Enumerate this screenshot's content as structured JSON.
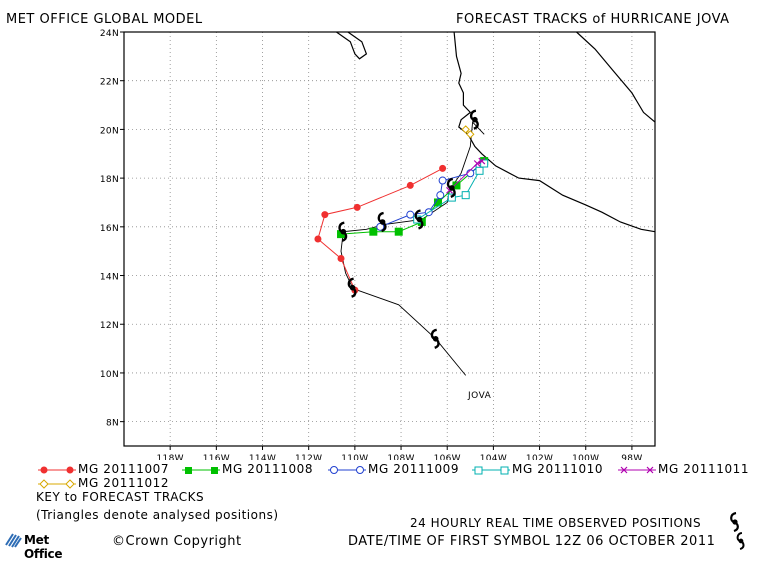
{
  "header": {
    "left_title": "MET OFFICE GLOBAL MODEL",
    "right_title": "FORECAST TRACKS of HURRICANE JOVA"
  },
  "axes": {
    "y_ticks": [
      "24N",
      "22N",
      "20N",
      "18N",
      "16N",
      "14N",
      "12N",
      "10N",
      "8N"
    ],
    "x_ticks": [
      "118W",
      "116W",
      "114W",
      "112W",
      "110W",
      "108W",
      "106W",
      "104W",
      "102W",
      "100W",
      "98W"
    ],
    "lon_range": [
      -120,
      -97
    ],
    "lat_range": [
      7,
      24
    ]
  },
  "storm_label": "JOVA",
  "observed_track": [
    {
      "lon": -104.4,
      "lat": 19.8
    },
    {
      "lon": -104.9,
      "lat": 20.3
    },
    {
      "lon": -105.0,
      "lat": 19.3
    },
    {
      "lon": -105.4,
      "lat": 18.2
    },
    {
      "lon": -105.9,
      "lat": 17.5
    },
    {
      "lon": -106.0,
      "lat": 17.0
    },
    {
      "lon": -107.1,
      "lat": 16.3
    },
    {
      "lon": -108.7,
      "lat": 16.1
    },
    {
      "lon": -109.5,
      "lat": 15.9
    },
    {
      "lon": -110.5,
      "lat": 15.8
    },
    {
      "lon": -110.6,
      "lat": 15.0
    },
    {
      "lon": -110.4,
      "lat": 14.1
    },
    {
      "lon": -110.1,
      "lat": 13.5
    },
    {
      "lon": -109.9,
      "lat": 13.4
    },
    {
      "lon": -108.1,
      "lat": 12.8
    },
    {
      "lon": -106.5,
      "lat": 11.4
    },
    {
      "lon": -105.2,
      "lat": 9.9
    }
  ],
  "observed_symbols": [
    {
      "lon": -104.8,
      "lat": 20.4
    },
    {
      "lon": -105.8,
      "lat": 17.6
    },
    {
      "lon": -107.2,
      "lat": 16.3
    },
    {
      "lon": -108.8,
      "lat": 16.2
    },
    {
      "lon": -110.5,
      "lat": 15.8
    },
    {
      "lon": -110.1,
      "lat": 13.5
    },
    {
      "lon": -106.5,
      "lat": 11.4
    }
  ],
  "forecast_tracks": [
    {
      "name": "MG 20111007",
      "color": "#f03030",
      "marker": "filled-circle",
      "points": [
        {
          "lon": -110.0,
          "lat": 13.4
        },
        {
          "lon": -110.6,
          "lat": 14.7
        },
        {
          "lon": -111.6,
          "lat": 15.5
        },
        {
          "lon": -111.3,
          "lat": 16.5
        },
        {
          "lon": -109.9,
          "lat": 16.8
        },
        {
          "lon": -107.6,
          "lat": 17.7
        },
        {
          "lon": -106.2,
          "lat": 18.4
        }
      ]
    },
    {
      "name": "MG 20111008",
      "color": "#00c000",
      "marker": "filled-square",
      "points": [
        {
          "lon": -110.6,
          "lat": 15.7
        },
        {
          "lon": -109.2,
          "lat": 15.8
        },
        {
          "lon": -108.1,
          "lat": 15.8
        },
        {
          "lon": -107.1,
          "lat": 16.2
        },
        {
          "lon": -106.4,
          "lat": 17.0
        },
        {
          "lon": -105.6,
          "lat": 17.7
        },
        {
          "lon": -104.4,
          "lat": 18.7
        }
      ]
    },
    {
      "name": "MG 20111009",
      "color": "#2040d0",
      "marker": "open-circle",
      "points": [
        {
          "lon": -108.9,
          "lat": 16.0
        },
        {
          "lon": -107.6,
          "lat": 16.5
        },
        {
          "lon": -106.8,
          "lat": 16.6
        },
        {
          "lon": -106.3,
          "lat": 17.3
        },
        {
          "lon": -106.2,
          "lat": 17.9
        },
        {
          "lon": -105.0,
          "lat": 18.2
        },
        {
          "lon": -104.6,
          "lat": 18.5
        }
      ]
    },
    {
      "name": "MG 20111010",
      "color": "#00b0b0",
      "marker": "open-square",
      "points": [
        {
          "lon": -107.3,
          "lat": 16.3
        },
        {
          "lon": -105.8,
          "lat": 17.2
        },
        {
          "lon": -105.2,
          "lat": 17.3
        },
        {
          "lon": -104.6,
          "lat": 18.3
        },
        {
          "lon": -104.4,
          "lat": 18.6
        }
      ]
    },
    {
      "name": "MG 20111011",
      "color": "#b000b0",
      "marker": "cross",
      "points": [
        {
          "lon": -105.9,
          "lat": 17.5
        },
        {
          "lon": -104.7,
          "lat": 18.6
        },
        {
          "lon": -104.5,
          "lat": 18.7
        }
      ]
    },
    {
      "name": "MG 20111012",
      "color": "#d8a800",
      "marker": "diamond",
      "points": [
        {
          "lon": -105.0,
          "lat": 19.8
        },
        {
          "lon": -105.2,
          "lat": 20.0
        }
      ]
    }
  ],
  "coastline": [
    [
      {
        "lon": -110.8,
        "lat": 24.0
      },
      {
        "lon": -110.2,
        "lat": 23.6
      },
      {
        "lon": -110.0,
        "lat": 23.1
      },
      {
        "lon": -109.8,
        "lat": 22.9
      },
      {
        "lon": -109.5,
        "lat": 23.1
      },
      {
        "lon": -109.7,
        "lat": 23.6
      },
      {
        "lon": -110.3,
        "lat": 24.0
      }
    ],
    [
      {
        "lon": -105.7,
        "lat": 24.0
      },
      {
        "lon": -105.6,
        "lat": 23.0
      },
      {
        "lon": -105.4,
        "lat": 22.3
      },
      {
        "lon": -105.5,
        "lat": 21.9
      },
      {
        "lon": -105.3,
        "lat": 21.5
      },
      {
        "lon": -105.3,
        "lat": 21.0
      },
      {
        "lon": -105.0,
        "lat": 20.7
      },
      {
        "lon": -105.4,
        "lat": 20.4
      },
      {
        "lon": -105.5,
        "lat": 20.1
      },
      {
        "lon": -105.1,
        "lat": 19.8
      },
      {
        "lon": -104.8,
        "lat": 19.3
      },
      {
        "lon": -104.5,
        "lat": 19.0
      },
      {
        "lon": -103.9,
        "lat": 18.5
      },
      {
        "lon": -102.9,
        "lat": 18.0
      },
      {
        "lon": -102.0,
        "lat": 17.9
      },
      {
        "lon": -101.0,
        "lat": 17.3
      },
      {
        "lon": -100.0,
        "lat": 16.9
      },
      {
        "lon": -99.3,
        "lat": 16.6
      },
      {
        "lon": -98.5,
        "lat": 16.2
      },
      {
        "lon": -97.6,
        "lat": 15.9
      },
      {
        "lon": -97.0,
        "lat": 15.8
      }
    ],
    [
      {
        "lon": -100.4,
        "lat": 24.0
      },
      {
        "lon": -99.6,
        "lat": 23.3
      },
      {
        "lon": -98.8,
        "lat": 22.4
      },
      {
        "lon": -98.0,
        "lat": 21.5
      },
      {
        "lon": -97.5,
        "lat": 20.7
      },
      {
        "lon": -97.0,
        "lat": 20.3
      }
    ]
  ],
  "legend": {
    "items": [
      "MG 20111007",
      "MG 20111008",
      "MG 20111009",
      "MG 20111010",
      "MG 20111011",
      "MG 20111012"
    ]
  },
  "footer": {
    "key_title": "KEY to FORECAST TRACKS",
    "key_note": "(Triangles denote analysed positions)",
    "observed_note": "24 HOURLY REAL TIME OBSERVED POSITIONS",
    "copyright": "©Crown Copyright",
    "date_line": "DATE/TIME OF FIRST SYMBOL 12Z 06 OCTOBER 2011",
    "logo_text": "Met Office"
  }
}
